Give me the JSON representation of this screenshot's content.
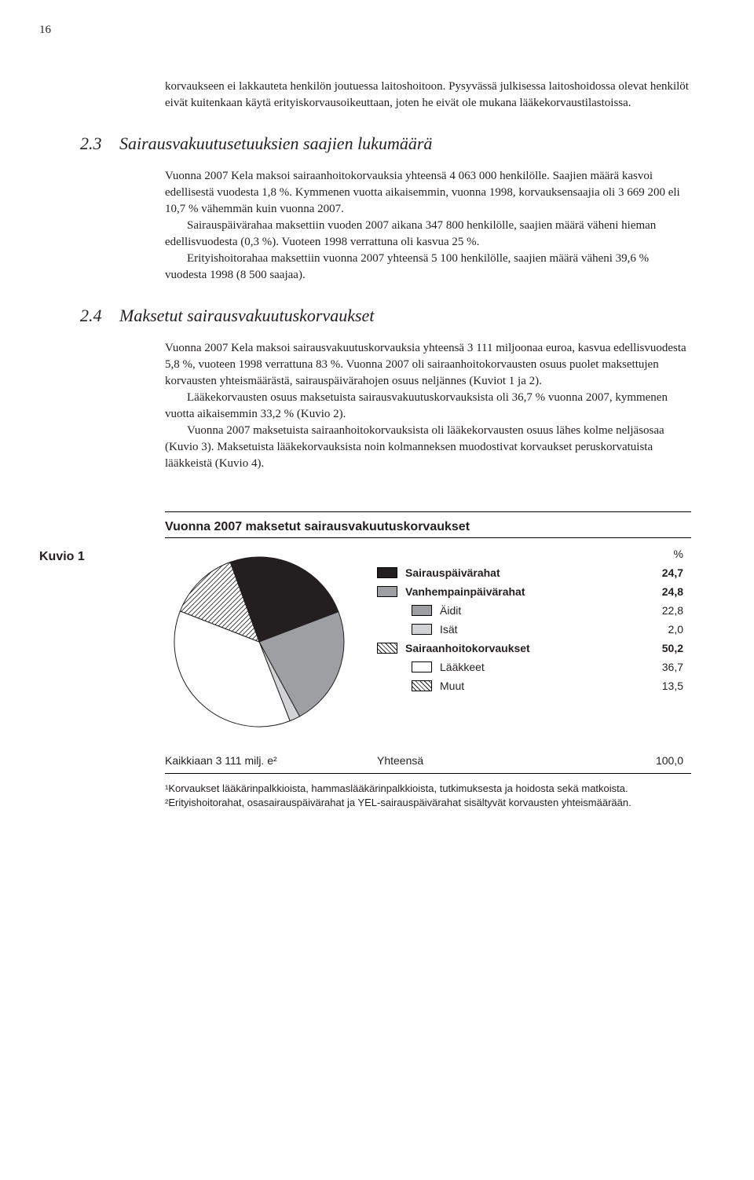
{
  "page_number": "16",
  "intro_para": "korvaukseen ei lakkauteta henkilön joutuessa laitoshoitoon. Pysyvässä julkisessa laitoshoidossa olevat henkilöt eivät kuitenkaan käytä erityiskorvausoikeuttaan, joten he eivät ole mukana lääkekorvaustilastoissa.",
  "section_23": {
    "num": "2.3",
    "title": "Sairausvakuutusetuuksien saajien lukumäärä",
    "p1": "Vuonna 2007 Kela maksoi sairaanhoitokorvauksia yhteensä 4 063 000 henkilölle. Saajien määrä kasvoi edellisestä vuodesta 1,8 %. Kymmenen vuotta aikaisemmin, vuonna 1998, korvauksensaajia oli 3 669 200 eli 10,7 % vähemmän kuin vuonna 2007.",
    "p2": "Sairauspäivärahaa maksettiin vuoden 2007 aikana 347 800 henkilölle, saajien määrä väheni hieman edellisvuodesta (0,3 %). Vuoteen 1998 verrattuna oli kasvua 25 %.",
    "p3": "Erityishoitorahaa maksettiin vuonna 2007 yhteensä 5 100 henkilölle, saajien määrä väheni 39,6 % vuodesta 1998 (8 500 saajaa)."
  },
  "section_24": {
    "num": "2.4",
    "title": "Maksetut sairausvakuutuskorvaukset",
    "p1": "Vuonna 2007 Kela maksoi sairausvakuutuskorvauksia yhteensä 3 111 miljoonaa euroa, kasvua edellisvuodesta 5,8 %, vuoteen 1998 verrattuna 83 %. Vuonna 2007 oli sairaanhoitokorvausten osuus puolet maksettujen korvausten yhteismäärästä, sairauspäivärahojen osuus neljännes (Kuviot 1 ja 2).",
    "p2": "Lääkekorvausten osuus maksetuista sairausvakuutuskorvauksista oli 36,7 % vuonna 2007, kymmenen vuotta aikaisemmin 33,2 % (Kuvio 2).",
    "p3": "Vuonna 2007 maksetuista sairaanhoitokorvauksista oli lääkekorvausten osuus lähes kolme neljäsosaa (Kuvio 3). Maksetuista lääkekorvauksista noin kolmanneksen muodostivat korvaukset peruskorvatuista lääkkeistä (Kuvio 4)."
  },
  "chart": {
    "kuvio_label": "Kuvio 1",
    "title": "Vuonna 2007 maksetut sairausvakuutuskorvaukset",
    "percent_header": "%",
    "type": "pie",
    "slices": [
      {
        "label": "Sairauspäivärahat",
        "value": 24.7,
        "value_str": "24,7",
        "fill": "#231f20",
        "pattern": "solid",
        "bold": true
      },
      {
        "label": "Vanhempainpäivärahat",
        "value": 24.8,
        "value_str": "24,8",
        "fill": "#9d9fa2",
        "pattern": "solid",
        "bold": true
      },
      {
        "label": "Äidit",
        "value": 22.8,
        "value_str": "22,8",
        "fill": "#9d9fa2",
        "pattern": "solid",
        "sub": true
      },
      {
        "label": "Isät",
        "value": 2.0,
        "value_str": "2,0",
        "fill": "#d1d3d4",
        "pattern": "solid",
        "sub": true
      },
      {
        "label": "Sairaanhoitokorvaukset",
        "value": 50.2,
        "value_str": "50,2",
        "fill": "#ffffff",
        "pattern": "diag",
        "bold": true
      },
      {
        "label": "Lääkkeet",
        "value": 36.7,
        "value_str": "36,7",
        "fill": "#ffffff",
        "pattern": "solid",
        "sub": true
      },
      {
        "label": "Muut",
        "value": 13.5,
        "value_str": "13,5",
        "fill": "#ffffff",
        "pattern": "diag",
        "sub": true
      }
    ],
    "pie_segments": [
      {
        "value": 24.7,
        "fill": "#231f20",
        "pattern": "solid"
      },
      {
        "value": 22.8,
        "fill": "#9d9fa2",
        "pattern": "solid"
      },
      {
        "value": 2.0,
        "fill": "#d1d3d4",
        "pattern": "solid"
      },
      {
        "value": 36.7,
        "fill": "#ffffff",
        "pattern": "solid"
      },
      {
        "value": 13.5,
        "fill": "#ffffff",
        "pattern": "diag"
      }
    ],
    "start_angle_deg": -20,
    "stroke": "#231f20",
    "stroke_width": 1,
    "total": {
      "left": "Kaikkiaan 3 111 milj. e²",
      "mid": "Yhteensä",
      "val": "100,0"
    },
    "footnote1": "¹Korvaukset lääkärinpalkkioista, hammaslääkärinpalkkioista, tutkimuksesta ja hoidosta sekä matkoista.",
    "footnote2": "²Erityishoitorahat, osasairauspäivärahat ja YEL-sairauspäivärahat sisältyvät korvausten yhteismäärään."
  }
}
